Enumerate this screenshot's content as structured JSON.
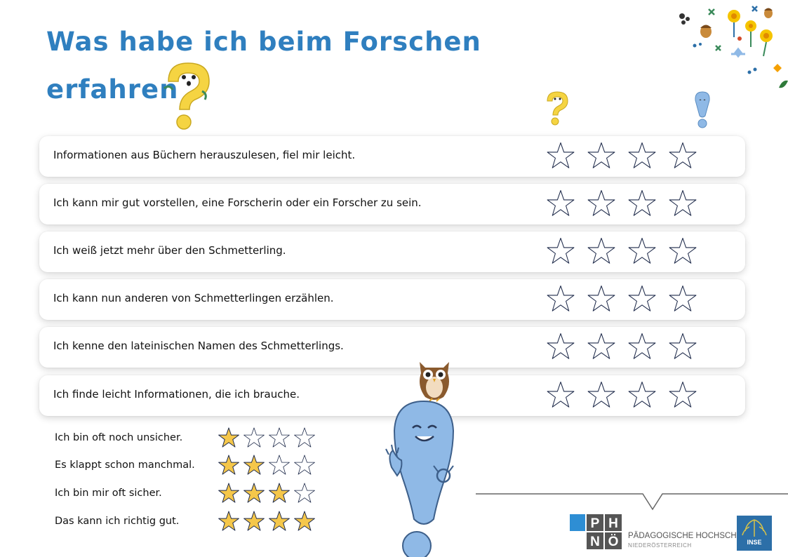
{
  "title": {
    "line1": "Was habe ich beim Forschen",
    "line2": "erfahren"
  },
  "statements": [
    {
      "text": "Informationen aus Büchern herauszulesen, fiel mir leicht.",
      "rating": 0
    },
    {
      "text": "Ich kann mir gut vorstellen, eine Forscherin oder ein Forscher zu sein.",
      "rating": 0
    },
    {
      "text": "Ich weiß jetzt mehr über den Schmetterling.",
      "rating": 0
    },
    {
      "text": "Ich kann nun anderen von Schmetterlingen erzählen.",
      "rating": 0
    },
    {
      "text": "Ich kenne den lateinischen Namen des Schmetterlings.",
      "rating": 0
    },
    {
      "text": "Ich finde leicht Informationen, die ich brauche.",
      "rating": 0
    }
  ],
  "legend": [
    {
      "text": "Ich bin oft noch unsicher.",
      "filled": 1
    },
    {
      "text": "Es klappt schon manchmal.",
      "filled": 2
    },
    {
      "text": "Ich bin mir oft sicher.",
      "filled": 3
    },
    {
      "text": "Das kann ich richtig gut.",
      "filled": 4
    }
  ],
  "logo": {
    "letters": [
      "P",
      "H",
      "N",
      "Ö"
    ],
    "name": "PÄDAGOGISCHE HOCHSCHULE",
    "region": "NIEDERÖSTERREICH",
    "partner": "INSE"
  },
  "colors": {
    "title": "#2f7fbf",
    "star_fill": "#f5c74a",
    "star_outline": "#1e2a4a",
    "mascot_blue": "#8fb9e6",
    "question_yellow": "#f5d442"
  },
  "icons": [
    "question-mark-mascot-icon",
    "exclamation-mark-mascot-icon",
    "owl-icon",
    "flower-decoration-icon",
    "star-icon"
  ]
}
